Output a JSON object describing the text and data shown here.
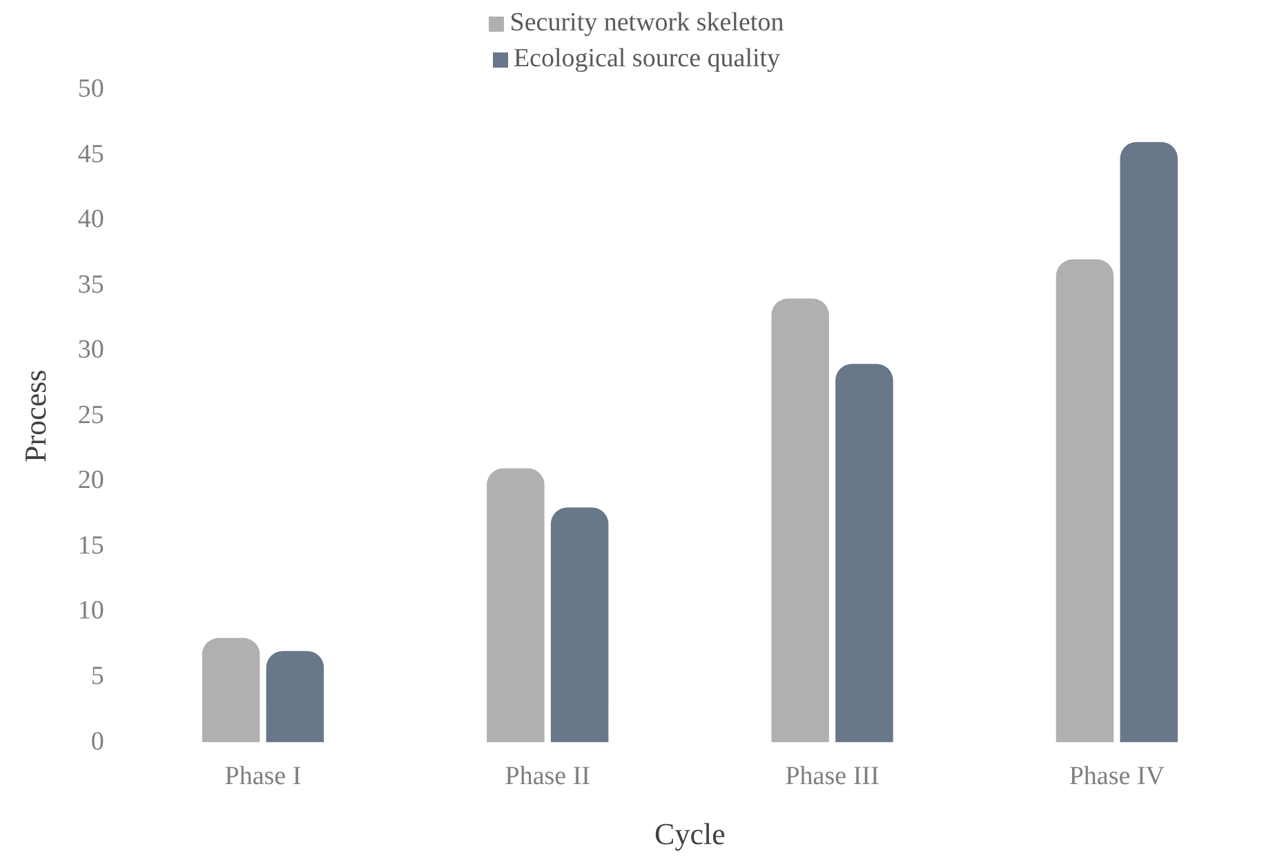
{
  "chart_data": {
    "type": "bar",
    "xlabel": "Cycle",
    "ylabel": "Process",
    "categories": [
      "Phase I",
      "Phase II",
      "Phase III",
      "Phase IV"
    ],
    "series": [
      {
        "name": "Security network skeleton",
        "color": "#b0b0b0",
        "values": [
          8,
          21,
          34,
          37
        ]
      },
      {
        "name": "Ecological source quality",
        "color": "#687789",
        "values": [
          7,
          18,
          29,
          46
        ]
      }
    ],
    "ylim": [
      0,
      50
    ],
    "yticks": [
      0,
      5,
      10,
      15,
      20,
      25,
      30,
      35,
      40,
      45,
      50
    ],
    "grid": false,
    "legend": "top"
  }
}
